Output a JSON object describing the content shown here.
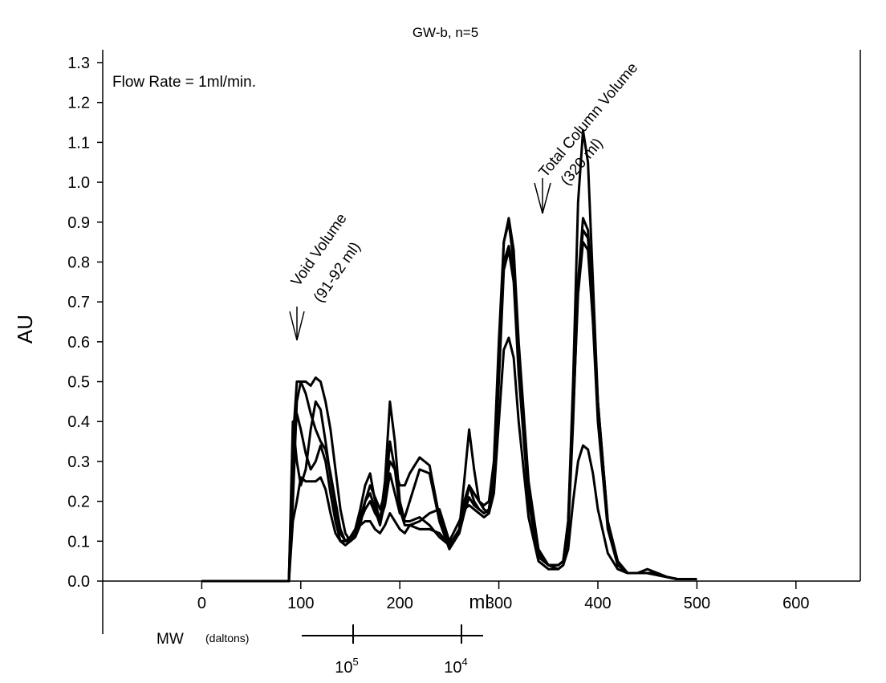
{
  "chart_data": {
    "type": "line",
    "title": "GW-b,  n=5",
    "xlabel": "ml",
    "ylabel": "AU",
    "annotations": {
      "flow_rate": "Flow Rate = 1ml/min.",
      "void_volume": [
        "Void Volume",
        "(91-92 ml)"
      ],
      "total_column_volume": [
        "Total Column Volume",
        "(320 ml)"
      ]
    },
    "mw_axis": {
      "label": "MW",
      "unit": "(daltons)",
      "ticks": [
        {
          "base": "10",
          "exp": "5"
        },
        {
          "base": "10",
          "exp": "4"
        }
      ]
    },
    "xlim": [
      -100,
      665
    ],
    "xticks": [
      0,
      100,
      200,
      300,
      400,
      500,
      600
    ],
    "ylim": [
      0,
      1.3
    ],
    "yticks": [
      {
        "value": 0,
        "label": "0.0"
      },
      0.1,
      0.2,
      0.3,
      0.4,
      0.5,
      0.6,
      0.7,
      0.8,
      0.9,
      {
        "value": 1,
        "label": "1.0"
      },
      1.1,
      1.2,
      1.3
    ],
    "grid": false,
    "x": [
      0,
      80,
      88,
      92,
      96,
      100,
      105,
      110,
      115,
      120,
      125,
      130,
      135,
      140,
      145,
      150,
      155,
      160,
      165,
      170,
      175,
      180,
      185,
      190,
      195,
      200,
      205,
      210,
      220,
      230,
      240,
      250,
      260,
      265,
      270,
      275,
      280,
      285,
      290,
      295,
      300,
      305,
      310,
      315,
      320,
      330,
      340,
      350,
      360,
      365,
      370,
      375,
      380,
      385,
      390,
      395,
      400,
      410,
      420,
      430,
      440,
      450,
      460,
      470,
      480,
      500
    ],
    "series": [
      {
        "color": "#000000",
        "values": [
          0,
          0,
          0,
          0.2,
          0.45,
          0.5,
          0.5,
          0.49,
          0.51,
          0.5,
          0.45,
          0.38,
          0.28,
          0.18,
          0.12,
          0.1,
          0.11,
          0.14,
          0.2,
          0.24,
          0.21,
          0.18,
          0.22,
          0.3,
          0.28,
          0.24,
          0.24,
          0.27,
          0.31,
          0.29,
          0.16,
          0.09,
          0.12,
          0.17,
          0.24,
          0.22,
          0.2,
          0.19,
          0.2,
          0.3,
          0.6,
          0.85,
          0.9,
          0.8,
          0.55,
          0.22,
          0.07,
          0.04,
          0.04,
          0.05,
          0.15,
          0.5,
          0.95,
          1.13,
          1.05,
          0.75,
          0.45,
          0.15,
          0.05,
          0.02,
          0.02,
          0.02,
          0.015,
          0.01,
          0.005,
          0.005
        ]
      },
      {
        "color": "#000000",
        "values": [
          0,
          0,
          0,
          0.3,
          0.42,
          0.38,
          0.32,
          0.28,
          0.3,
          0.34,
          0.3,
          0.22,
          0.15,
          0.1,
          0.09,
          0.1,
          0.13,
          0.18,
          0.24,
          0.27,
          0.2,
          0.15,
          0.25,
          0.45,
          0.35,
          0.2,
          0.15,
          0.15,
          0.16,
          0.14,
          0.11,
          0.09,
          0.13,
          0.25,
          0.38,
          0.28,
          0.2,
          0.18,
          0.17,
          0.25,
          0.55,
          0.85,
          0.91,
          0.83,
          0.6,
          0.25,
          0.08,
          0.04,
          0.03,
          0.04,
          0.12,
          0.4,
          0.75,
          0.91,
          0.88,
          0.7,
          0.45,
          0.15,
          0.05,
          0.02,
          0.02,
          0.03,
          0.02,
          0.01,
          0.005,
          0.005
        ]
      },
      {
        "color": "#000000",
        "values": [
          0,
          0,
          0,
          0.35,
          0.5,
          0.5,
          0.47,
          0.42,
          0.38,
          0.35,
          0.33,
          0.27,
          0.2,
          0.13,
          0.1,
          0.1,
          0.12,
          0.16,
          0.2,
          0.22,
          0.18,
          0.14,
          0.2,
          0.35,
          0.28,
          0.18,
          0.14,
          0.14,
          0.13,
          0.13,
          0.12,
          0.09,
          0.12,
          0.2,
          0.24,
          0.2,
          0.18,
          0.17,
          0.18,
          0.28,
          0.55,
          0.8,
          0.84,
          0.78,
          0.55,
          0.22,
          0.07,
          0.04,
          0.04,
          0.05,
          0.15,
          0.45,
          0.75,
          0.88,
          0.86,
          0.68,
          0.42,
          0.14,
          0.05,
          0.02,
          0.02,
          0.02,
          0.015,
          0.01,
          0.005,
          0.005
        ]
      },
      {
        "color": "#000000",
        "values": [
          0,
          0,
          0,
          0.4,
          0.3,
          0.24,
          0.28,
          0.38,
          0.45,
          0.43,
          0.35,
          0.26,
          0.18,
          0.12,
          0.1,
          0.11,
          0.13,
          0.15,
          0.18,
          0.2,
          0.17,
          0.15,
          0.19,
          0.27,
          0.22,
          0.17,
          0.16,
          0.2,
          0.28,
          0.27,
          0.15,
          0.08,
          0.12,
          0.17,
          0.21,
          0.19,
          0.18,
          0.17,
          0.18,
          0.26,
          0.5,
          0.78,
          0.83,
          0.75,
          0.52,
          0.2,
          0.06,
          0.04,
          0.04,
          0.05,
          0.14,
          0.42,
          0.72,
          0.85,
          0.83,
          0.65,
          0.4,
          0.13,
          0.04,
          0.02,
          0.02,
          0.02,
          0.015,
          0.01,
          0.005,
          0.005
        ]
      },
      {
        "color": "#000000",
        "values": [
          0,
          0,
          0,
          0.15,
          0.2,
          0.26,
          0.25,
          0.25,
          0.25,
          0.26,
          0.23,
          0.17,
          0.12,
          0.1,
          0.1,
          0.11,
          0.13,
          0.14,
          0.15,
          0.15,
          0.13,
          0.12,
          0.14,
          0.17,
          0.15,
          0.13,
          0.12,
          0.14,
          0.15,
          0.17,
          0.18,
          0.1,
          0.15,
          0.18,
          0.19,
          0.18,
          0.17,
          0.16,
          0.17,
          0.22,
          0.4,
          0.58,
          0.61,
          0.56,
          0.4,
          0.16,
          0.05,
          0.03,
          0.03,
          0.04,
          0.08,
          0.2,
          0.3,
          0.34,
          0.33,
          0.27,
          0.18,
          0.07,
          0.03,
          0.02,
          0.02,
          0.02,
          0.02,
          0.01,
          0.005,
          0.005
        ]
      }
    ]
  }
}
